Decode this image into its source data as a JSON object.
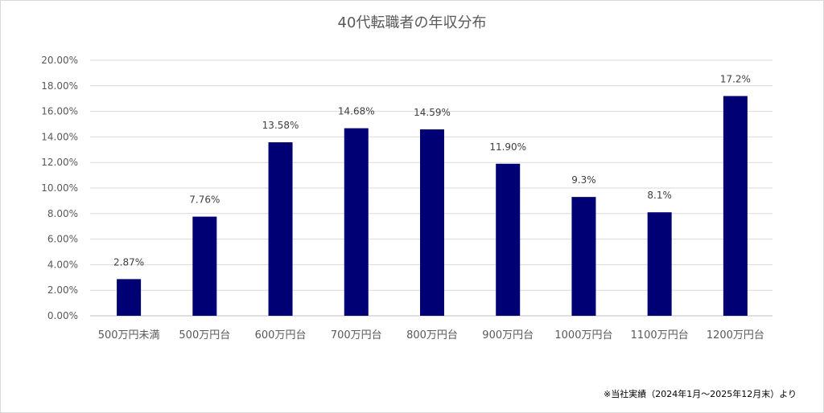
{
  "chart_data": {
    "type": "bar",
    "title": "40代転職者の年収分布",
    "categories": [
      "500万円未満",
      "500万円台",
      "600万円台",
      "700万円台",
      "800万円台",
      "900万円台",
      "1000万円台",
      "1100万円台",
      "1200万円台"
    ],
    "values": [
      2.87,
      7.76,
      13.58,
      14.68,
      14.59,
      11.9,
      9.3,
      8.1,
      17.2
    ],
    "data_labels": [
      "2.87%",
      "7.76%",
      "13.58%",
      "14.68%",
      "14.59%",
      "11.90%",
      "9.3%",
      "8.1%",
      "17.2%"
    ],
    "y_ticks": [
      "0.00%",
      "2.00%",
      "4.00%",
      "6.00%",
      "8.00%",
      "10.00%",
      "12.00%",
      "14.00%",
      "16.00%",
      "18.00%",
      "20.00%"
    ],
    "ylim": [
      0,
      20
    ],
    "xlabel": "",
    "ylabel": "",
    "grid": true,
    "legend": "none",
    "bar_color": "#000075"
  },
  "footnote": "※当社実績（2024年1月～2025年12月末）より"
}
